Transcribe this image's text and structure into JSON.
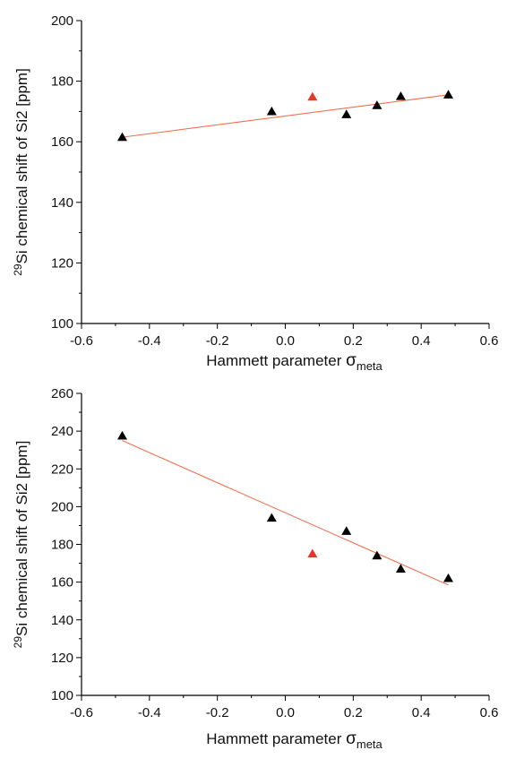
{
  "chart_data": [
    {
      "type": "scatter",
      "xlabel": "Hammett parameter",
      "xlabel_symbol": "σ",
      "xlabel_subscript": "meta",
      "ylabel_superscript": "29",
      "ylabel": "Si chemical shift of Si2 [ppm]",
      "xlim": [
        -0.6,
        0.6
      ],
      "ylim": [
        100,
        200
      ],
      "x_ticks": [
        -0.6,
        -0.4,
        -0.2,
        0.0,
        0.2,
        0.4,
        0.6
      ],
      "x_tick_labels": [
        "-0.6",
        "-0.4",
        "-0.2",
        "0.0",
        "0.2",
        "0.4",
        "0.6"
      ],
      "y_ticks": [
        100,
        120,
        140,
        160,
        180,
        200
      ],
      "y_tick_labels": [
        "100",
        "120",
        "140",
        "160",
        "180",
        "200"
      ],
      "grid": false,
      "series": [
        {
          "marker": "triangle",
          "color": "#000000",
          "x": [
            -0.48,
            -0.04,
            0.18,
            0.27,
            0.34,
            0.48
          ],
          "y": [
            161.5,
            170.0,
            169.0,
            172.0,
            175.0,
            175.5
          ]
        },
        {
          "marker": "triangle",
          "color": "#e03a2a",
          "x": [
            0.08
          ],
          "y": [
            174.8
          ]
        },
        {
          "type": "line",
          "color": "#f07050",
          "x": [
            -0.48,
            0.48
          ],
          "y": [
            161.5,
            175.5
          ]
        }
      ]
    },
    {
      "type": "scatter",
      "xlabel": "Hammett parameter",
      "xlabel_symbol": "σ",
      "xlabel_subscript": "meta",
      "ylabel_superscript": "29",
      "ylabel": "Si chemical shift of Si2 [ppm]",
      "xlim": [
        -0.6,
        0.6
      ],
      "ylim": [
        100,
        260
      ],
      "x_ticks": [
        -0.6,
        -0.4,
        -0.2,
        0.0,
        0.2,
        0.4,
        0.6
      ],
      "x_tick_labels": [
        "-0.6",
        "-0.4",
        "-0.2",
        "0.0",
        "0.2",
        "0.4",
        "0.6"
      ],
      "y_ticks": [
        100,
        120,
        140,
        160,
        180,
        200,
        220,
        240,
        260
      ],
      "y_tick_labels": [
        "100",
        "120",
        "140",
        "160",
        "180",
        "200",
        "220",
        "240",
        "260"
      ],
      "grid": false,
      "series": [
        {
          "marker": "triangle",
          "color": "#000000",
          "x": [
            -0.48,
            -0.04,
            0.18,
            0.27,
            0.34,
            0.48
          ],
          "y": [
            237.5,
            194.0,
            187.0,
            174.0,
            167.0,
            162.0
          ]
        },
        {
          "marker": "triangle",
          "color": "#e03a2a",
          "x": [
            0.08
          ],
          "y": [
            175.0
          ]
        },
        {
          "type": "line",
          "color": "#f07050",
          "x": [
            -0.48,
            0.48
          ],
          "y": [
            235.0,
            158.5
          ]
        }
      ]
    }
  ]
}
